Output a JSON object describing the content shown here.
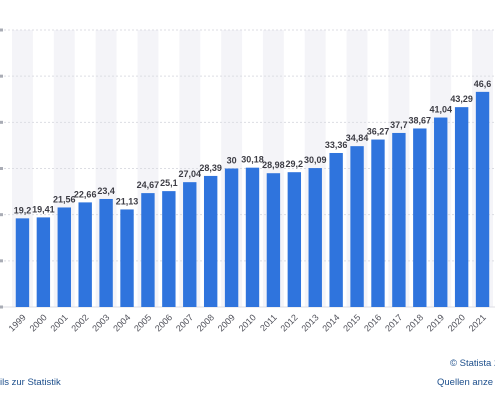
{
  "chart_data": {
    "type": "bar",
    "title": "",
    "xlabel": "",
    "ylabel": "",
    "ylim": [
      0,
      60
    ],
    "grid": true,
    "categories": [
      "1999",
      "2000",
      "2001",
      "2002",
      "2003",
      "2004",
      "2005",
      "2006",
      "2007",
      "2008",
      "2009",
      "2010",
      "2011",
      "2012",
      "2013",
      "2014",
      "2015",
      "2016",
      "2017",
      "2018",
      "2019",
      "2020",
      "2021"
    ],
    "values": [
      19.2,
      19.41,
      21.56,
      22.66,
      23.4,
      21.13,
      24.67,
      25.1,
      27.04,
      28.39,
      30,
      30.18,
      28.98,
      29.2,
      30.09,
      33.36,
      34.84,
      36.27,
      37.7,
      38.67,
      41.04,
      43.29,
      46.6
    ],
    "value_labels": [
      "19,2",
      "19,41",
      "21,56",
      "22,66",
      "23,4",
      "21,13",
      "24,67",
      "25,1",
      "27,04",
      "28,39",
      "30",
      "30,18",
      "28,98",
      "29,2",
      "30,09",
      "33,36",
      "34,84",
      "36,27",
      "37,7",
      "38,67",
      "41,04",
      "43,29",
      "46,6"
    ],
    "bar_color": "#2f74dd",
    "column_band_color": "#f4f4f8"
  },
  "footer": {
    "details_link": "ils zur Statistik",
    "copyright": "© Statista 2",
    "sources_link": "Quellen anze"
  }
}
